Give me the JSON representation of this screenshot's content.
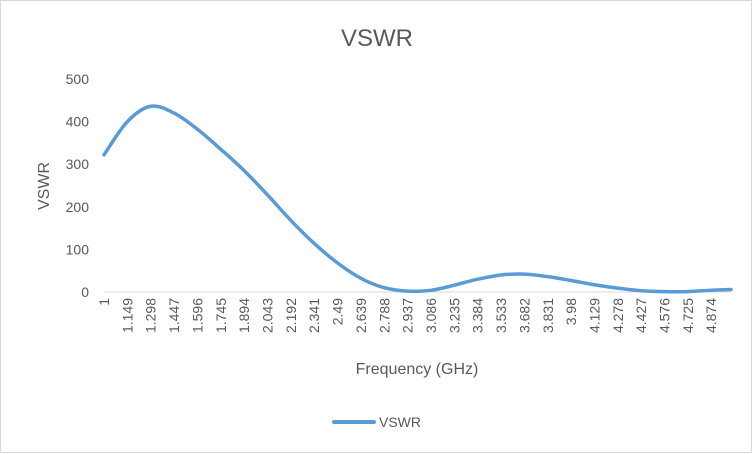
{
  "chart_data": {
    "type": "line",
    "title": "VSWR",
    "xlabel": "Frequency (GHz)",
    "ylabel": "VSWR",
    "ylim": [
      0,
      500
    ],
    "y_ticks": [
      0,
      100,
      200,
      300,
      400,
      500
    ],
    "grid": false,
    "legend_position": "bottom",
    "x_tick_labels": [
      "1",
      "1.149",
      "1.298",
      "1.447",
      "1.596",
      "1.745",
      "1.894",
      "2.043",
      "2.192",
      "2.341",
      "2.49",
      "2.639",
      "2.788",
      "2.937",
      "3.086",
      "3.235",
      "3.384",
      "3.533",
      "3.682",
      "3.831",
      "3.98",
      "4.129",
      "4.278",
      "4.427",
      "4.576",
      "4.725",
      "4.874"
    ],
    "x": [
      1,
      1.149,
      1.298,
      1.447,
      1.596,
      1.745,
      1.894,
      2.043,
      2.192,
      2.341,
      2.49,
      2.639,
      2.788,
      2.937,
      3.086,
      3.235,
      3.384,
      3.533,
      3.682,
      3.831,
      3.98,
      4.129,
      4.278,
      4.427,
      4.576,
      4.725,
      4.874,
      5.0
    ],
    "series": [
      {
        "name": "VSWR",
        "color": "#5b9bd5",
        "values": [
          322,
          400,
          436,
          420,
          382,
          335,
          285,
          228,
          168,
          114,
          68,
          32,
          10,
          2,
          4,
          16,
          30,
          40,
          42,
          36,
          27,
          17,
          9,
          3,
          1,
          1,
          4,
          6
        ]
      }
    ]
  }
}
